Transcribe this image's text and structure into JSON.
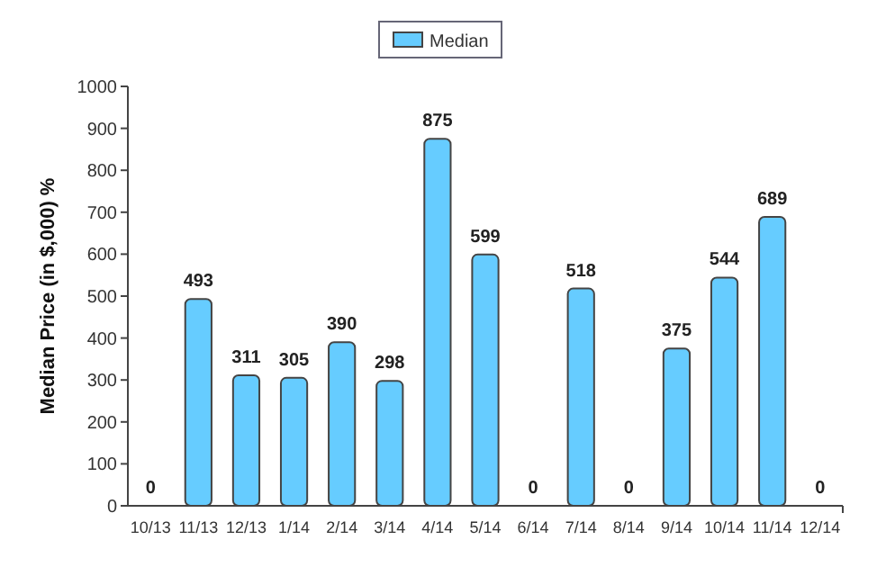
{
  "chart_data": {
    "type": "bar",
    "ylabel": "Median Price (in $,000) %",
    "categories": [
      "10/13",
      "11/13",
      "12/13",
      "1/14",
      "2/14",
      "3/14",
      "4/14",
      "5/14",
      "6/14",
      "7/14",
      "8/14",
      "9/14",
      "10/14",
      "11/14",
      "12/14"
    ],
    "series": [
      {
        "name": "Median",
        "color": "#66ccff",
        "values": [
          0,
          493,
          311,
          305,
          390,
          298,
          875,
          599,
          0,
          518,
          0,
          375,
          544,
          689,
          0
        ]
      }
    ],
    "ylim": [
      0,
      1000
    ],
    "yticks": [
      0,
      100,
      200,
      300,
      400,
      500,
      600,
      700,
      800,
      900,
      1000
    ],
    "data_labels": true,
    "legend": "top",
    "grid": false
  }
}
